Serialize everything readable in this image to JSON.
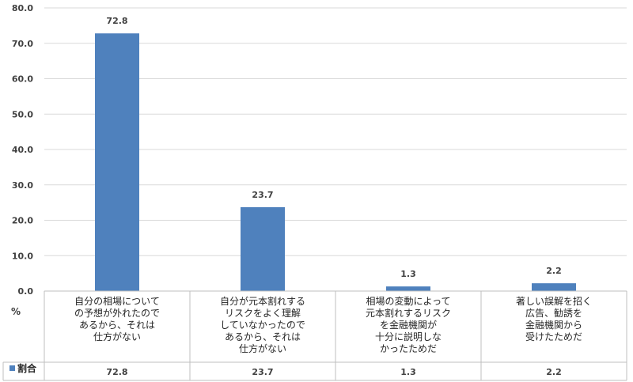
{
  "chart_data": {
    "type": "bar",
    "categories": [
      [
        "自分の相場について",
        "の予想が外れたので",
        "あるから、それは",
        "仕方がない"
      ],
      [
        "自分が元本割れする",
        "リスクをよく理解",
        "していなかったので",
        "あるから、それは",
        "仕方がない"
      ],
      [
        "相場の変動によって",
        "元本割れするリスク",
        "を金融機関が",
        "十分に説明しな",
        "かったためだ"
      ],
      [
        "著しい誤解を招く",
        "広告、勧誘を",
        "金融機関から",
        "受けたためだ"
      ]
    ],
    "series": [
      {
        "name": "割合",
        "values": [
          72.8,
          23.7,
          1.3,
          2.2
        ],
        "labels": [
          "72.8",
          "23.7",
          "1.3",
          "2.2"
        ]
      }
    ],
    "ylabel": "%",
    "ylim": [
      0,
      80
    ],
    "yticks": [
      "0.0",
      "10.0",
      "20.0",
      "30.0",
      "40.0",
      "50.0",
      "60.0",
      "70.0",
      "80.0"
    ],
    "grid": true,
    "legend": "data-table",
    "colors": {
      "bar": "#4f81bd",
      "grid": "#d9d9d9",
      "border": "#bfbfbf"
    }
  }
}
